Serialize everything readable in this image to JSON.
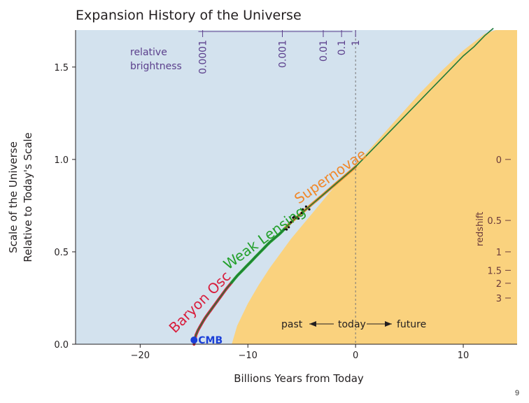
{
  "chart_data": {
    "type": "line",
    "title": "Expansion History of the Universe",
    "xlabel": "Billions Years from Today",
    "ylabel": "Scale of the Universe",
    "ylabel2": "Relative to Today's Scale",
    "xlim": [
      -26,
      15
    ],
    "ylim": [
      0,
      1.7
    ],
    "x_ticks": [
      -20,
      -10,
      0,
      10
    ],
    "x_tick_labels": [
      "−20",
      "−10",
      "0",
      "10"
    ],
    "y_ticks": [
      0.0,
      0.5,
      1.0,
      1.5
    ],
    "y_tick_labels": [
      "0.0",
      "0.5",
      "1.0",
      "1.5"
    ],
    "series": [
      {
        "name": "expansion history",
        "color": "#1e7a3a",
        "x": [
          -15.0,
          -14.9,
          -14.6,
          -14.0,
          -13.0,
          -12.0,
          -11.0,
          -10.0,
          -9.0,
          -8.0,
          -7.0,
          -6.0,
          -5.0,
          -4.0,
          -3.0,
          -2.0,
          -1.0,
          0.0,
          1.0,
          2.0,
          3.0,
          4.0,
          5.0,
          6.0,
          7.0,
          8.0,
          9.0,
          10.0,
          11.0,
          12.0,
          12.8
        ],
        "y": [
          0.0,
          0.04,
          0.08,
          0.14,
          0.22,
          0.3,
          0.37,
          0.43,
          0.49,
          0.55,
          0.6,
          0.66,
          0.71,
          0.76,
          0.81,
          0.86,
          0.91,
          0.96,
          1.02,
          1.08,
          1.14,
          1.2,
          1.26,
          1.32,
          1.38,
          1.44,
          1.5,
          1.56,
          1.61,
          1.67,
          1.71
        ]
      }
    ],
    "probes": [
      {
        "name": "Baryon Osc",
        "color": "#d81e3c",
        "x_range": [
          -15.0,
          -11.5
        ]
      },
      {
        "name": "Weak Lensing",
        "color": "#22a02a",
        "x_range": [
          -11.5,
          -6.0
        ]
      },
      {
        "name": "Supernovae",
        "color": "#f0882a",
        "x_range": [
          -6.5,
          0.0
        ]
      }
    ],
    "markers": [
      {
        "name": "CMB",
        "x": -15.0,
        "y": 0.0,
        "color": "#1a3fd8"
      }
    ],
    "today_x": 0,
    "relative_brightness": {
      "label_line1": "relative",
      "label_line2": "brightness",
      "ticks": [
        "0.0001",
        "0.001",
        "0.01",
        "0.1",
        "1"
      ],
      "tick_x": [
        -14.2,
        -6.8,
        -3.0,
        -1.3,
        0.0
      ]
    },
    "redshift": {
      "label": "redshift",
      "ticks": [
        "0",
        "0.5",
        "1",
        "1.5",
        "2",
        "3"
      ],
      "tick_y": [
        1.0,
        0.67,
        0.5,
        0.4,
        0.33,
        0.25
      ]
    },
    "time_arrow": {
      "past": "past",
      "today": "today",
      "future": "future"
    }
  },
  "page": {
    "number": "9"
  },
  "colors": {
    "sky": "#d3e2ee",
    "fill": "#fad27e",
    "axis": "#231f20",
    "purple": "#5b3f8c",
    "brown": "#6b3b3b"
  }
}
